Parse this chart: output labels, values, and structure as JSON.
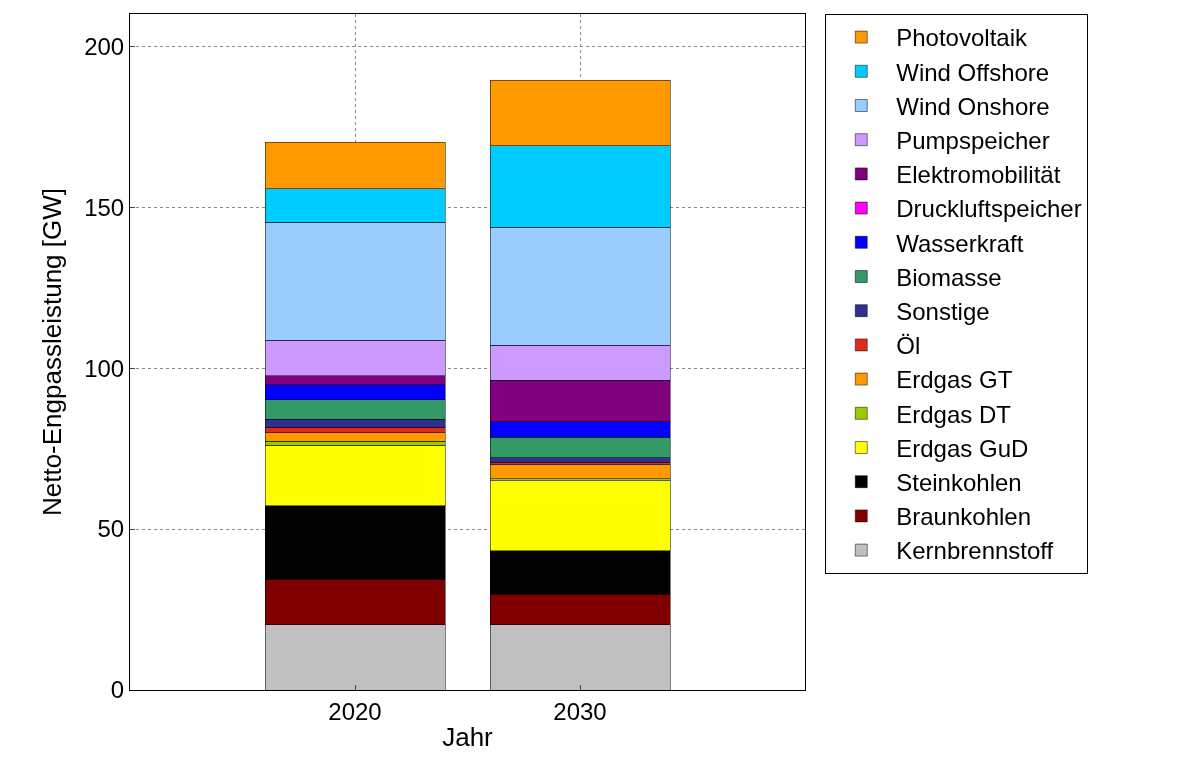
{
  "chart_data": {
    "type": "bar",
    "stacked": true,
    "xlabel": "Jahr",
    "ylabel": "Netto-Engpassleistung [GW]",
    "categories": [
      "2020",
      "2030"
    ],
    "series": [
      {
        "name": "Kernbrennstoff",
        "color": "#c0c0c0",
        "values": [
          20.3,
          20.3
        ]
      },
      {
        "name": "Braunkohlen",
        "color": "#800000",
        "values": [
          14.1,
          9.5
        ]
      },
      {
        "name": "Steinkohlen",
        "color": "#000000",
        "values": [
          22.8,
          13.5
        ]
      },
      {
        "name": "Erdgas GuD",
        "color": "#ffff00",
        "values": [
          18.9,
          21.7
        ]
      },
      {
        "name": "Erdgas DT",
        "color": "#99cc00",
        "values": [
          1.1,
          0.6
        ]
      },
      {
        "name": "Erdgas GT",
        "color": "#ff9900",
        "values": [
          2.7,
          4.6
        ]
      },
      {
        "name": "Öl",
        "color": "#dd2c1b",
        "values": [
          1.7,
          0.6
        ]
      },
      {
        "name": "Sonstige",
        "color": "#2e3192",
        "values": [
          2.5,
          1.3
        ]
      },
      {
        "name": "Biomasse",
        "color": "#339966",
        "values": [
          6.1,
          6.4
        ]
      },
      {
        "name": "Wasserkraft",
        "color": "#0000ff",
        "values": [
          4.7,
          4.8
        ]
      },
      {
        "name": "Druckluftspeicher",
        "color": "#ff00ff",
        "values": [
          0,
          0
        ]
      },
      {
        "name": "Elektromobilität",
        "color": "#800080",
        "values": [
          2.8,
          13.0
        ]
      },
      {
        "name": "Pumpspeicher",
        "color": "#cc99ff",
        "values": [
          10.9,
          10.8
        ]
      },
      {
        "name": "Wind Onshore",
        "color": "#99ccff",
        "values": [
          36.7,
          36.6
        ]
      },
      {
        "name": "Wind Offshore",
        "color": "#00ccff",
        "values": [
          10.4,
          25.3
        ]
      },
      {
        "name": "Photovoltaik",
        "color": "#ff9900",
        "values": [
          14.5,
          20.4
        ]
      }
    ],
    "ylim": [
      0,
      210
    ],
    "yticks": [
      0,
      50,
      100,
      150,
      200
    ],
    "grid": true,
    "legend": "right"
  }
}
